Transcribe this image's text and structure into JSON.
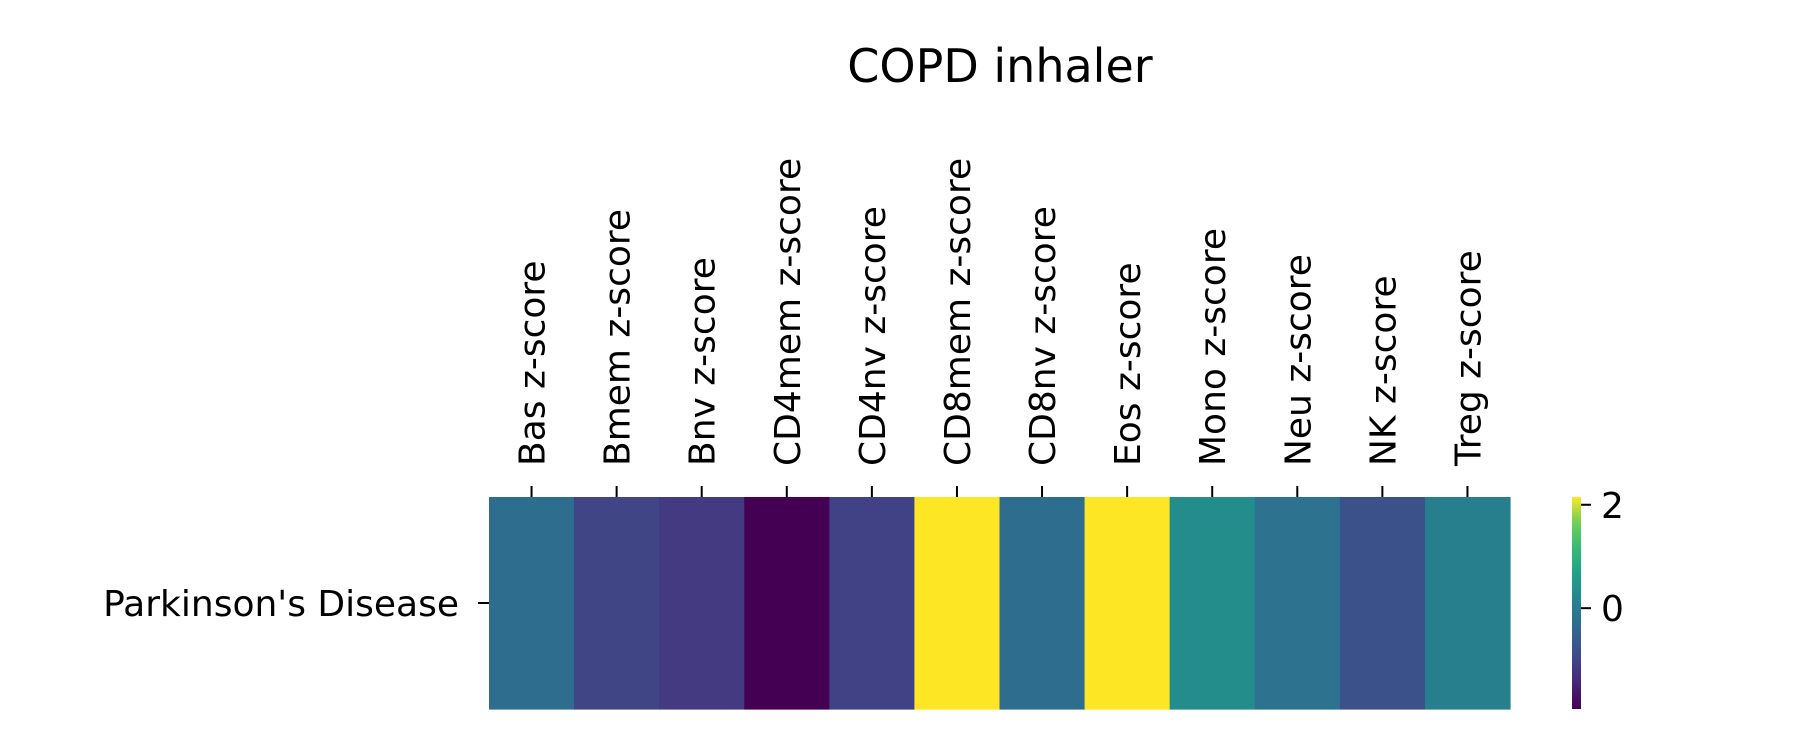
{
  "chart_data": {
    "type": "heatmap",
    "title": "COPD inhaler",
    "xlabel": "",
    "ylabel": "",
    "rows": [
      "Parkinson's Disease"
    ],
    "columns": [
      "Bas z-score",
      "Bmem z-score",
      "Bnv z-score",
      "CD4mem z-score",
      "CD4nv z-score",
      "CD8mem z-score",
      "CD8nv z-score",
      "Eos z-score",
      "Mono z-score",
      "Neu z-score",
      "NK z-score",
      "Treg z-score"
    ],
    "values": [
      [
        -0.3,
        -1.0,
        -1.15,
        -1.95,
        -1.05,
        2.15,
        -0.3,
        2.15,
        0.3,
        -0.2,
        -0.8,
        0.05
      ]
    ],
    "colorbar": {
      "colormap": "viridis",
      "vmin": -1.95,
      "vmax": 2.15,
      "ticks": [
        0,
        2
      ],
      "tick_labels": [
        "0",
        "2"
      ]
    }
  }
}
